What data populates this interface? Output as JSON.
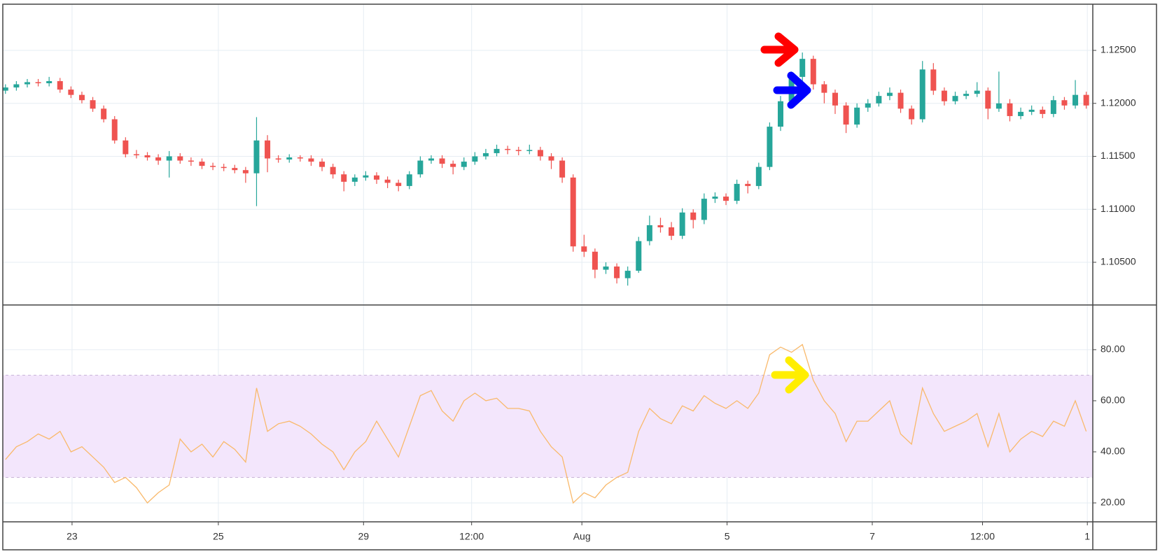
{
  "chart_data": [
    {
      "type": "candlestick",
      "up_color": "#26a69a",
      "down_color": "#ef5350",
      "x": [
        0,
        1,
        2,
        3,
        4,
        5,
        6,
        7,
        8,
        9,
        10,
        11,
        12,
        13,
        14,
        15,
        16,
        17,
        18,
        19,
        20,
        21,
        22,
        23,
        24,
        25,
        26,
        27,
        28,
        29,
        30,
        31,
        32,
        33,
        34,
        35,
        36,
        37,
        38,
        39,
        40,
        41,
        42,
        43,
        44,
        45,
        46,
        47,
        48,
        49,
        50,
        51,
        52,
        53,
        54,
        55,
        56,
        57,
        58,
        59,
        60,
        61,
        62,
        63,
        64,
        65,
        66,
        67,
        68,
        69,
        70,
        71,
        72,
        73,
        74,
        75,
        76,
        77,
        78,
        79,
        80,
        81,
        82,
        83,
        84,
        85,
        86,
        87,
        88,
        89,
        90,
        91,
        92,
        93,
        94,
        95,
        96,
        97,
        98,
        99
      ],
      "open": [
        1.1212,
        1.1215,
        1.1218,
        1.122,
        1.1219,
        1.1221,
        1.1213,
        1.1208,
        1.1203,
        1.1195,
        1.1185,
        1.1165,
        1.1152,
        1.1151,
        1.1149,
        1.1146,
        1.115,
        1.1146,
        1.1145,
        1.1141,
        1.114,
        1.1139,
        1.1137,
        1.1134,
        1.1165,
        1.1148,
        1.1147,
        1.1149,
        1.1148,
        1.1145,
        1.114,
        1.1133,
        1.1126,
        1.113,
        1.1132,
        1.1128,
        1.1125,
        1.1122,
        1.1133,
        1.1146,
        1.1148,
        1.1143,
        1.114,
        1.1145,
        1.115,
        1.1153,
        1.1157,
        1.1156,
        1.1155,
        1.1156,
        1.115,
        1.1146,
        1.113,
        1.1065,
        1.106,
        1.1043,
        1.1046,
        1.1035,
        1.1042,
        1.107,
        1.1085,
        1.1083,
        1.1075,
        1.1097,
        1.109,
        1.111,
        1.1112,
        1.1108,
        1.1124,
        1.1122,
        1.114,
        1.1178,
        1.1202,
        1.1225,
        1.1242,
        1.1218,
        1.121,
        1.1198,
        1.118,
        1.1196,
        1.12,
        1.1207,
        1.121,
        1.1195,
        1.1185,
        1.1232,
        1.1212,
        1.1202,
        1.1207,
        1.1209,
        1.1212,
        1.1195,
        1.12,
        1.1188,
        1.1192,
        1.1194,
        1.119,
        1.1203,
        1.1198,
        1.1208
      ],
      "high": [
        1.1218,
        1.1221,
        1.1223,
        1.1223,
        1.1225,
        1.1224,
        1.1216,
        1.1211,
        1.1206,
        1.1198,
        1.1188,
        1.1168,
        1.1156,
        1.1154,
        1.1152,
        1.1155,
        1.1153,
        1.1149,
        1.1148,
        1.1144,
        1.1143,
        1.1142,
        1.114,
        1.1187,
        1.117,
        1.1151,
        1.1152,
        1.1151,
        1.1151,
        1.1148,
        1.1143,
        1.1136,
        1.1133,
        1.1136,
        1.1135,
        1.1131,
        1.1128,
        1.1136,
        1.115,
        1.1151,
        1.1151,
        1.1146,
        1.1149,
        1.1154,
        1.1157,
        1.1161,
        1.116,
        1.1159,
        1.1161,
        1.1159,
        1.1153,
        1.1149,
        1.1133,
        1.1076,
        1.1063,
        1.105,
        1.1049,
        1.1046,
        1.1074,
        1.1094,
        1.1092,
        1.1088,
        1.1101,
        1.11,
        1.1115,
        1.1116,
        1.1115,
        1.1128,
        1.1127,
        1.1144,
        1.1182,
        1.1207,
        1.123,
        1.1248,
        1.1245,
        1.1221,
        1.1213,
        1.1201,
        1.12,
        1.1204,
        1.1211,
        1.1215,
        1.1213,
        1.1198,
        1.124,
        1.1238,
        1.1215,
        1.1211,
        1.1212,
        1.122,
        1.1215,
        1.123,
        1.1204,
        1.1196,
        1.1198,
        1.1197,
        1.1207,
        1.1206,
        1.1222,
        1.1211
      ],
      "low": [
        1.1209,
        1.1212,
        1.1215,
        1.1216,
        1.1216,
        1.121,
        1.1205,
        1.12,
        1.1192,
        1.1182,
        1.1162,
        1.1149,
        1.1148,
        1.1146,
        1.1142,
        1.113,
        1.1143,
        1.1141,
        1.1138,
        1.1137,
        1.1136,
        1.1134,
        1.1125,
        1.1103,
        1.1135,
        1.1144,
        1.1144,
        1.1145,
        1.1141,
        1.1136,
        1.1129,
        1.1117,
        1.1122,
        1.1127,
        1.1124,
        1.112,
        1.1117,
        1.1119,
        1.113,
        1.1143,
        1.1139,
        1.1133,
        1.1137,
        1.1142,
        1.1147,
        1.115,
        1.1152,
        1.1151,
        1.1152,
        1.1146,
        1.1138,
        1.1125,
        1.106,
        1.1055,
        1.1035,
        1.1039,
        1.103,
        1.1028,
        1.104,
        1.1066,
        1.1078,
        1.1071,
        1.1072,
        1.1082,
        1.1086,
        1.1106,
        1.1104,
        1.1105,
        1.1115,
        1.1119,
        1.1137,
        1.1174,
        1.1198,
        1.122,
        1.1213,
        1.12,
        1.119,
        1.1172,
        1.1177,
        1.1192,
        1.1197,
        1.1203,
        1.1191,
        1.118,
        1.1182,
        1.1208,
        1.1198,
        1.1199,
        1.1204,
        1.1206,
        1.1185,
        1.1192,
        1.1183,
        1.1185,
        1.1189,
        1.1186,
        1.1187,
        1.1194,
        1.1195,
        1.1195
      ],
      "close": [
        1.1215,
        1.1218,
        1.122,
        1.1219,
        1.1221,
        1.1213,
        1.1208,
        1.1203,
        1.1195,
        1.1185,
        1.1165,
        1.1152,
        1.1151,
        1.1149,
        1.1146,
        1.115,
        1.1146,
        1.1145,
        1.1141,
        1.114,
        1.1139,
        1.1137,
        1.1134,
        1.1165,
        1.1148,
        1.1147,
        1.1149,
        1.1148,
        1.1145,
        1.114,
        1.1133,
        1.1126,
        1.113,
        1.1132,
        1.1128,
        1.1125,
        1.1122,
        1.1133,
        1.1146,
        1.1148,
        1.1143,
        1.114,
        1.1145,
        1.115,
        1.1153,
        1.1157,
        1.1156,
        1.1155,
        1.1156,
        1.115,
        1.1146,
        1.113,
        1.1065,
        1.106,
        1.1043,
        1.1046,
        1.1035,
        1.1042,
        1.107,
        1.1085,
        1.1083,
        1.1075,
        1.1097,
        1.109,
        1.111,
        1.1112,
        1.1108,
        1.1124,
        1.1122,
        1.114,
        1.1178,
        1.1202,
        1.1225,
        1.1242,
        1.1218,
        1.121,
        1.1198,
        1.118,
        1.1196,
        1.12,
        1.1207,
        1.121,
        1.1195,
        1.1185,
        1.1232,
        1.1212,
        1.1202,
        1.1207,
        1.1209,
        1.1212,
        1.1195,
        1.12,
        1.1188,
        1.1192,
        1.1194,
        1.119,
        1.1203,
        1.1198,
        1.1208,
        1.1198
      ],
      "xlim": [
        -0.5,
        99.6
      ],
      "ylim": [
        1.10097,
        1.12936
      ],
      "yticks": [
        {
          "value": 1.105,
          "label": "1.10500"
        },
        {
          "value": 1.11,
          "label": "1.11000"
        },
        {
          "value": 1.115,
          "label": "1.11500"
        },
        {
          "value": 1.12,
          "label": "1.12000"
        },
        {
          "value": 1.125,
          "label": "1.12500"
        }
      ],
      "grid": true
    },
    {
      "type": "line",
      "x": [
        0,
        1,
        2,
        3,
        4,
        5,
        6,
        7,
        8,
        9,
        10,
        11,
        12,
        13,
        14,
        15,
        16,
        17,
        18,
        19,
        20,
        21,
        22,
        23,
        24,
        25,
        26,
        27,
        28,
        29,
        30,
        31,
        32,
        33,
        34,
        35,
        36,
        37,
        38,
        39,
        40,
        41,
        42,
        43,
        44,
        45,
        46,
        47,
        48,
        49,
        50,
        51,
        52,
        53,
        54,
        55,
        56,
        57,
        58,
        59,
        60,
        61,
        62,
        63,
        64,
        65,
        66,
        67,
        68,
        69,
        70,
        71,
        72,
        73,
        74,
        75,
        76,
        77,
        78,
        79,
        80,
        81,
        82,
        83,
        84,
        85,
        86,
        87,
        88,
        89,
        90,
        91,
        92,
        93,
        94,
        95,
        96,
        97,
        98,
        99
      ],
      "values": [
        37,
        42,
        44,
        47,
        45,
        48,
        40,
        42,
        38,
        34,
        28,
        30,
        26,
        20,
        24,
        27,
        45,
        40,
        43,
        38,
        44,
        41,
        36,
        65,
        48,
        51,
        52,
        50,
        47,
        43,
        40,
        33,
        40,
        44,
        52,
        45,
        38,
        50,
        62,
        64,
        56,
        52,
        60,
        63,
        60,
        61,
        57,
        57,
        56,
        48,
        42,
        38,
        20,
        24,
        22,
        27,
        30,
        32,
        48,
        57,
        53,
        51,
        58,
        56,
        62,
        59,
        57,
        60,
        57,
        63,
        78,
        81,
        79,
        82,
        68,
        60,
        55,
        44,
        52,
        52,
        56,
        60,
        47,
        43,
        65,
        55,
        48,
        50,
        52,
        55,
        42,
        55,
        40,
        45,
        48,
        46,
        52,
        50,
        60,
        48
      ],
      "color": "#f9b96b",
      "band": [
        30,
        70
      ],
      "band_color": "#f3e6fc",
      "xlim": [
        -0.5,
        99.6
      ],
      "ylim": [
        12.6,
        97.5
      ],
      "yticks": [
        {
          "value": 20,
          "label": "20.00"
        },
        {
          "value": 40,
          "label": "40.00"
        },
        {
          "value": 60,
          "label": "60.00"
        },
        {
          "value": 80,
          "label": "80.00"
        }
      ],
      "xticks": [
        {
          "value": 6.1,
          "label": "23"
        },
        {
          "value": 19.5,
          "label": "25"
        },
        {
          "value": 32.8,
          "label": "29"
        },
        {
          "value": 42.7,
          "label": "12:00"
        },
        {
          "value": 52.8,
          "label": "Aug"
        },
        {
          "value": 66.1,
          "label": "5"
        },
        {
          "value": 79.4,
          "label": "7"
        },
        {
          "value": 89.5,
          "label": "12:00"
        },
        {
          "value": 99.1,
          "label": "1"
        }
      ],
      "grid": true
    }
  ]
}
